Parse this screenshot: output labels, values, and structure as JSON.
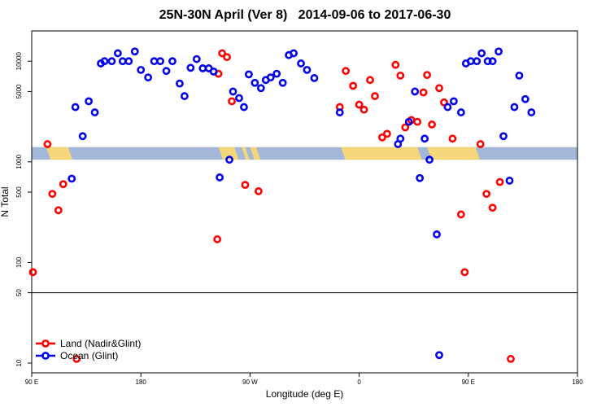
{
  "chart_data": {
    "type": "scatter",
    "title": "25N-30N April (Ver 8)   2014-09-06 to 2017-06-30",
    "xlabel": "Longitude (deg E)",
    "ylabel": "N Total",
    "y_scale": "log",
    "xlim": [
      90,
      540
    ],
    "ylim": [
      8,
      20000
    ],
    "x_ticks": [
      {
        "value": 90,
        "label": "90 E"
      },
      {
        "value": 180,
        "label": "180"
      },
      {
        "value": 270,
        "label": "90 W"
      },
      {
        "value": 360,
        "label": "0"
      },
      {
        "value": 450,
        "label": "90 E"
      },
      {
        "value": 540,
        "label": "180"
      }
    ],
    "y_ticks": [
      {
        "value": 10,
        "label": "10"
      },
      {
        "value": 50,
        "label": "50"
      },
      {
        "value": 100,
        "label": "100"
      },
      {
        "value": 500,
        "label": "500"
      },
      {
        "value": 1000,
        "label": "1000"
      },
      {
        "value": 5000,
        "label": "5000"
      },
      {
        "value": 10000,
        "label": "10000"
      }
    ],
    "reference_line": 50,
    "band": {
      "y_range": [
        1050,
        1400
      ],
      "base_color": "#a3b8d8",
      "land_color": "#f5d77a",
      "land_segments": [
        [
          102,
          120
        ],
        [
          244,
          257
        ],
        [
          263,
          266
        ],
        [
          270,
          275
        ],
        [
          345,
          408
        ],
        [
          416,
          456
        ]
      ]
    },
    "legend_position": "bottom-left",
    "series": [
      {
        "name": "Land (Nadir&Glint)",
        "color": "#ff0000",
        "points": [
          [
            91,
            80
          ],
          [
            103,
            1500
          ],
          [
            107,
            480
          ],
          [
            112,
            330
          ],
          [
            116,
            600
          ],
          [
            127,
            11
          ],
          [
            243,
            170
          ],
          [
            244,
            7500
          ],
          [
            247,
            12000
          ],
          [
            251,
            11000
          ],
          [
            255,
            4000
          ],
          [
            266,
            590
          ],
          [
            277,
            510
          ],
          [
            344,
            3500
          ],
          [
            349,
            8000
          ],
          [
            355,
            5700
          ],
          [
            360,
            3700
          ],
          [
            364,
            3300
          ],
          [
            369,
            6500
          ],
          [
            373,
            4500
          ],
          [
            379,
            1750
          ],
          [
            383,
            1900
          ],
          [
            390,
            9200
          ],
          [
            394,
            7200
          ],
          [
            398,
            2200
          ],
          [
            403,
            2600
          ],
          [
            408,
            2500
          ],
          [
            413,
            4900
          ],
          [
            416,
            7300
          ],
          [
            420,
            2350
          ],
          [
            426,
            5400
          ],
          [
            430,
            3900
          ],
          [
            437,
            1700
          ],
          [
            444,
            300
          ],
          [
            447,
            80
          ],
          [
            460,
            1500
          ],
          [
            465,
            480
          ],
          [
            470,
            350
          ],
          [
            476,
            630
          ],
          [
            485,
            11
          ]
        ]
      },
      {
        "name": "Ocean (Glint)",
        "color": "#0000ee",
        "points": [
          [
            123,
            680
          ],
          [
            126,
            3500
          ],
          [
            132,
            1800
          ],
          [
            137,
            4000
          ],
          [
            142,
            3100
          ],
          [
            147,
            9500
          ],
          [
            150,
            10000
          ],
          [
            156,
            10000
          ],
          [
            161,
            12000
          ],
          [
            165,
            10000
          ],
          [
            170,
            10000
          ],
          [
            175,
            12500
          ],
          [
            180,
            8200
          ],
          [
            186,
            6900
          ],
          [
            191,
            10000
          ],
          [
            196,
            10000
          ],
          [
            201,
            8000
          ],
          [
            206,
            10000
          ],
          [
            212,
            6000
          ],
          [
            216,
            4500
          ],
          [
            221,
            8600
          ],
          [
            226,
            10500
          ],
          [
            231,
            8500
          ],
          [
            236,
            8500
          ],
          [
            240,
            7900
          ],
          [
            245,
            700
          ],
          [
            253,
            1050
          ],
          [
            256,
            5000
          ],
          [
            261,
            4300
          ],
          [
            265,
            3500
          ],
          [
            269,
            7400
          ],
          [
            274,
            6100
          ],
          [
            279,
            5400
          ],
          [
            283,
            6500
          ],
          [
            287,
            6900
          ],
          [
            292,
            7500
          ],
          [
            297,
            6100
          ],
          [
            302,
            11500
          ],
          [
            306,
            12000
          ],
          [
            312,
            9500
          ],
          [
            317,
            8200
          ],
          [
            323,
            6800
          ],
          [
            344,
            3100
          ],
          [
            392,
            1500
          ],
          [
            394,
            1700
          ],
          [
            401,
            2500
          ],
          [
            406,
            5000
          ],
          [
            410,
            690
          ],
          [
            414,
            1700
          ],
          [
            418,
            1050
          ],
          [
            424,
            190
          ],
          [
            426,
            12
          ],
          [
            433,
            3500
          ],
          [
            438,
            4000
          ],
          [
            444,
            3100
          ],
          [
            448,
            9500
          ],
          [
            452,
            10000
          ],
          [
            457,
            10000
          ],
          [
            461,
            12000
          ],
          [
            466,
            10000
          ],
          [
            470,
            10000
          ],
          [
            475,
            12500
          ],
          [
            479,
            1800
          ],
          [
            484,
            650
          ],
          [
            488,
            3500
          ],
          [
            492,
            7200
          ],
          [
            497,
            4200
          ],
          [
            502,
            3100
          ]
        ]
      }
    ]
  }
}
